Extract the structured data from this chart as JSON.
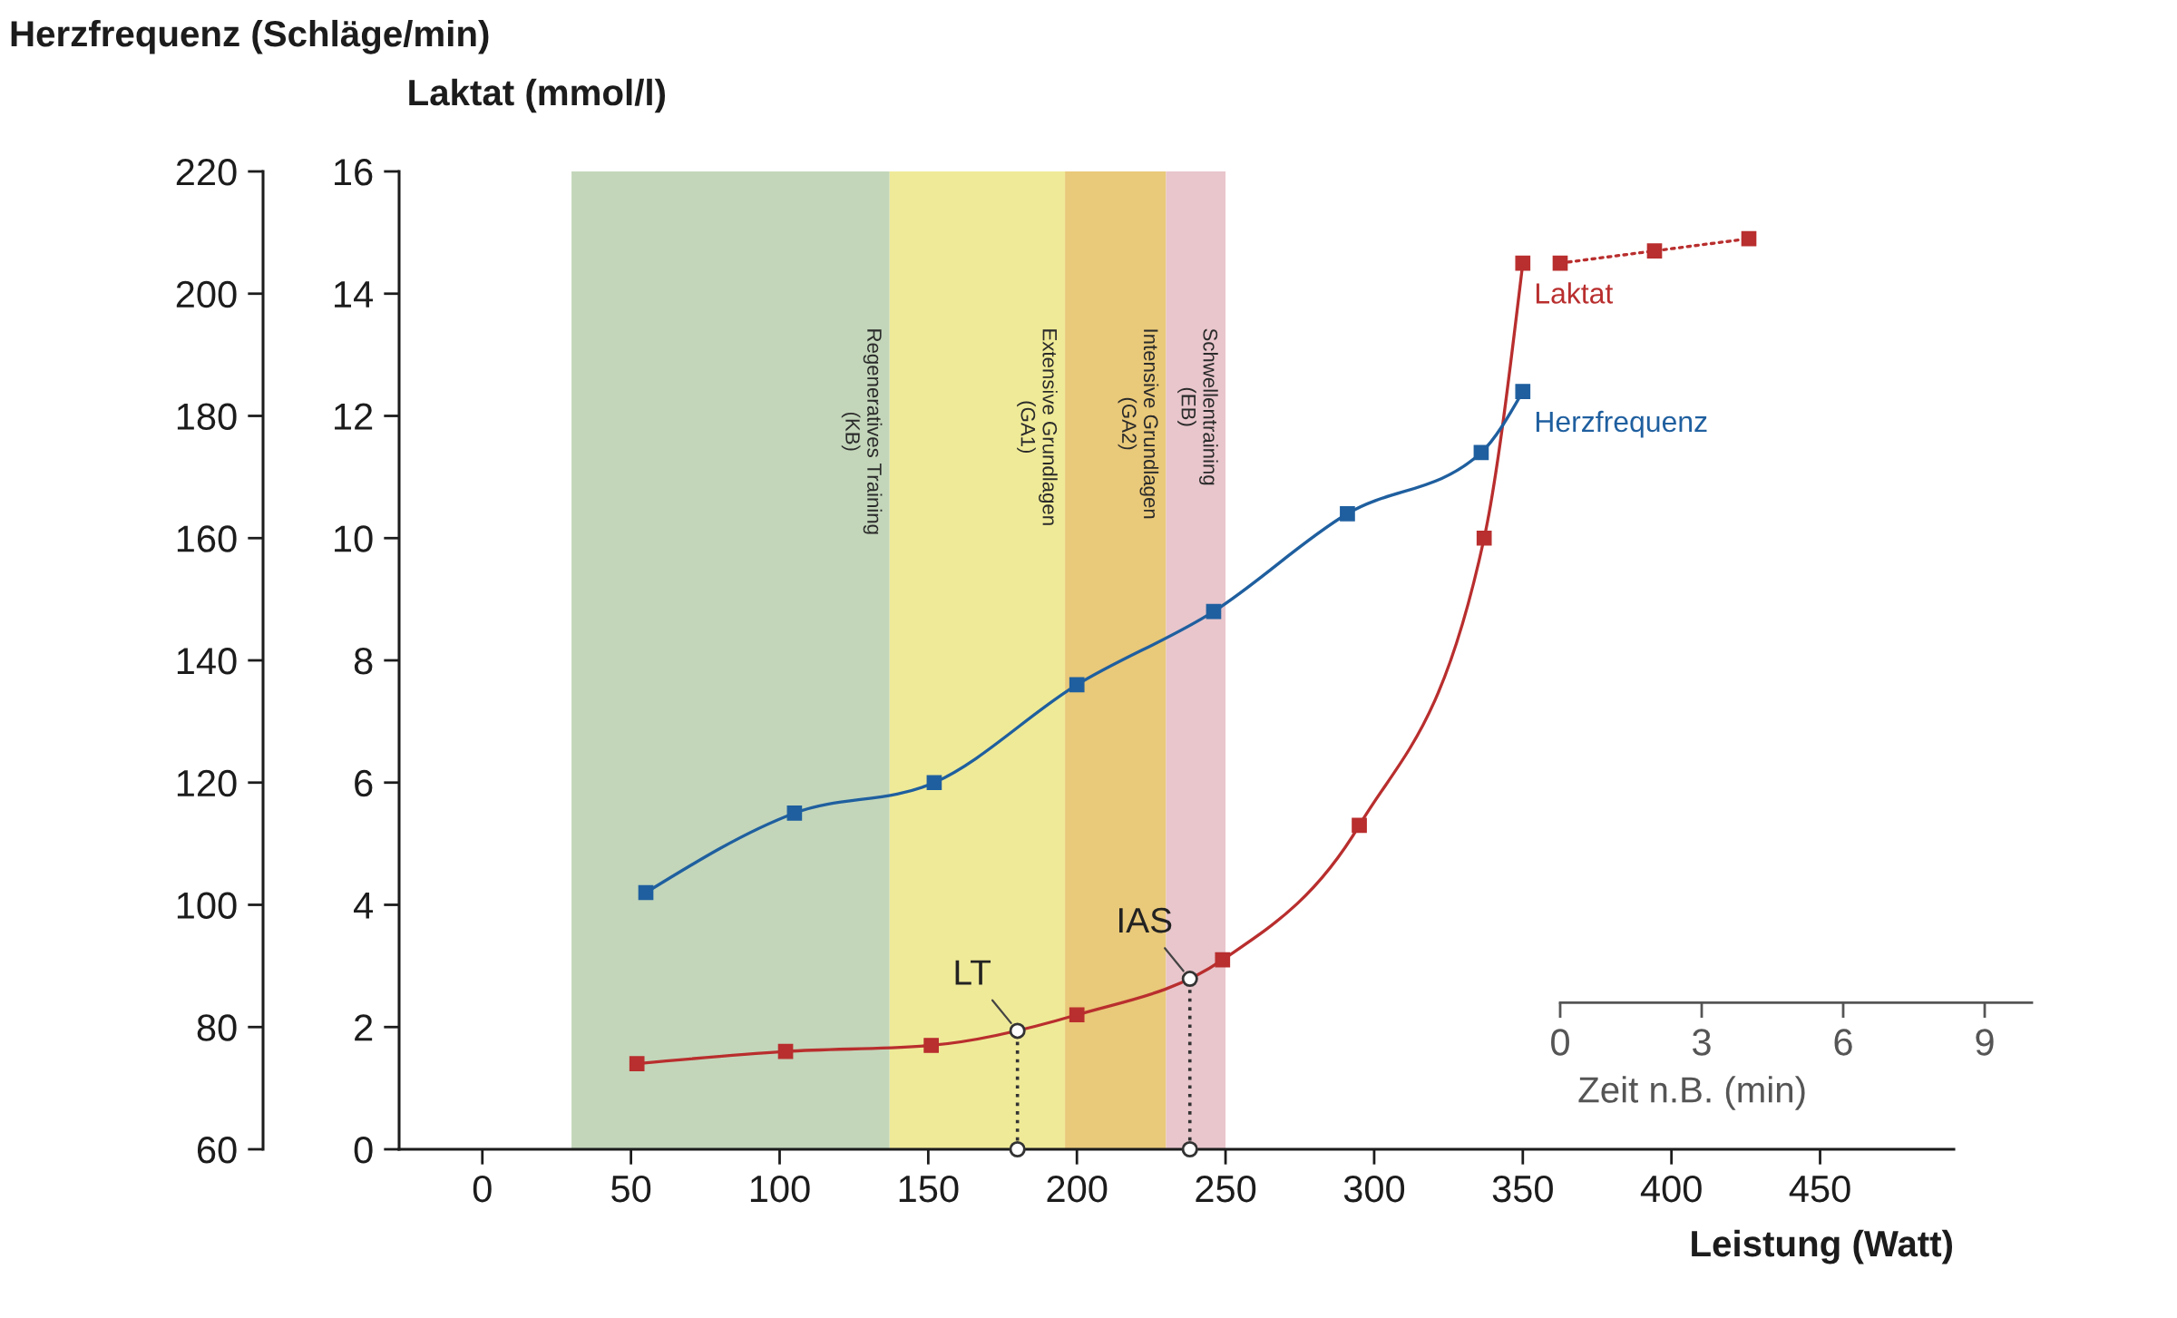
{
  "chart_data": {
    "type": "line",
    "xlabel": "Leistung (Watt)",
    "ylabel": "Laktat (mmol/l)",
    "y2label": "Herzfrequenz (Schläge/min)",
    "x2label": "Zeit n.B. (min)",
    "xlim": [
      -28,
      495
    ],
    "xticks": [
      0,
      50,
      100,
      150,
      200,
      250,
      300,
      350,
      400,
      450
    ],
    "ylim": [
      0,
      16
    ],
    "yticks": [
      0,
      2,
      4,
      6,
      8,
      10,
      12,
      14,
      16
    ],
    "y2lim": [
      60,
      220
    ],
    "y2ticks": [
      60,
      80,
      100,
      120,
      140,
      160,
      180,
      200,
      220
    ],
    "x2lim": [
      0,
      10
    ],
    "x2ticks": [
      0,
      3,
      6,
      9
    ],
    "marker": "square",
    "line_style": "solid",
    "series": [
      {
        "name": "Laktat",
        "color": "#b92e2e",
        "x": [
          52,
          102,
          151,
          200,
          249,
          295,
          337,
          350
        ],
        "values": [
          1.4,
          1.6,
          1.7,
          2.2,
          3.1,
          5.3,
          10.0,
          14.5
        ]
      },
      {
        "name": "Herzfrequenz",
        "color": "#1f5f9f",
        "axis": "y2",
        "x": [
          55,
          105,
          152,
          200,
          246,
          291,
          336,
          350
        ],
        "values": [
          102,
          115,
          120,
          136,
          148,
          164,
          174,
          184
        ]
      },
      {
        "color": "#b92e2e",
        "axis": "x2",
        "line_style": "dotted",
        "x": [
          0,
          2,
          4
        ],
        "values": [
          14.5,
          14.7,
          14.9
        ]
      }
    ],
    "bands": [
      {
        "axis": "x",
        "from": 30,
        "to": 137,
        "label": "Regeneratives Training\n(KB)",
        "color": "#c3d6ba"
      },
      {
        "axis": "x",
        "from": 137,
        "to": 196,
        "label": "Extensive Grundlagen\n(GA1)",
        "color": "#efea98"
      },
      {
        "axis": "x",
        "from": 196,
        "to": 230,
        "label": "Intensive Grundlagen\n(GA2)",
        "color": "#e9c97a"
      },
      {
        "axis": "x",
        "from": 230,
        "to": 250,
        "label": "Schwellentraining\n(EB)",
        "color": "#e8c6cc"
      }
    ],
    "ref_lines": [
      {
        "axis": "x",
        "value": 180,
        "label": "LT",
        "color": "#333333",
        "line_style": "dotted"
      },
      {
        "axis": "x",
        "value": 238,
        "label": "IAS",
        "color": "#333333",
        "line_style": "dotted"
      }
    ]
  }
}
